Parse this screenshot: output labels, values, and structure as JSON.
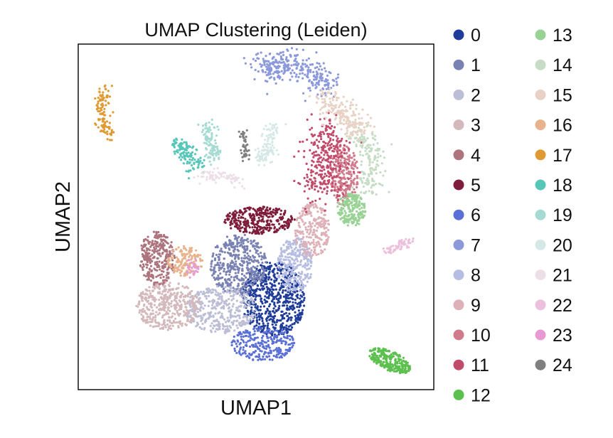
{
  "chart_data": {
    "type": "scatter",
    "title": "UMAP Clustering (Leiden)",
    "xlabel": "UMAP1",
    "ylabel": "UMAP2",
    "axis_ticks": "none",
    "grid": false,
    "legend_placement": "right, two columns",
    "series": [
      {
        "name": "0",
        "color": "#1f3c9a"
      },
      {
        "name": "1",
        "color": "#7a82b4"
      },
      {
        "name": "2",
        "color": "#bcbed6"
      },
      {
        "name": "3",
        "color": "#d4b9bc"
      },
      {
        "name": "4",
        "color": "#ad747e"
      },
      {
        "name": "5",
        "color": "#7e1c3b"
      },
      {
        "name": "6",
        "color": "#5b70d6"
      },
      {
        "name": "7",
        "color": "#8b99db"
      },
      {
        "name": "8",
        "color": "#b6bde2"
      },
      {
        "name": "9",
        "color": "#deb0b7"
      },
      {
        "name": "10",
        "color": "#d07a8c"
      },
      {
        "name": "11",
        "color": "#c24a6a"
      },
      {
        "name": "12",
        "color": "#5cc04f"
      },
      {
        "name": "13",
        "color": "#98d294"
      },
      {
        "name": "14",
        "color": "#c6dcc5"
      },
      {
        "name": "15",
        "color": "#e8d2c6"
      },
      {
        "name": "16",
        "color": "#e8b38c"
      },
      {
        "name": "17",
        "color": "#e09a34"
      },
      {
        "name": "18",
        "color": "#56c6b8"
      },
      {
        "name": "19",
        "color": "#a5dbd3"
      },
      {
        "name": "20",
        "color": "#d6e8e5"
      },
      {
        "name": "21",
        "color": "#eddfe6"
      },
      {
        "name": "22",
        "color": "#ecbfdc"
      },
      {
        "name": "23",
        "color": "#e79ad4"
      },
      {
        "name": "24",
        "color": "#808080"
      }
    ],
    "clusters": [
      {
        "label": "0",
        "shape": "ellipse",
        "cx": 0.55,
        "cy": 0.26,
        "rx": 0.09,
        "ry": 0.11,
        "n": 650
      },
      {
        "label": "1",
        "shape": "ellipse",
        "cx": 0.45,
        "cy": 0.36,
        "rx": 0.08,
        "ry": 0.09,
        "n": 450
      },
      {
        "label": "2",
        "shape": "ellipse",
        "cx": 0.4,
        "cy": 0.23,
        "rx": 0.1,
        "ry": 0.07,
        "n": 380
      },
      {
        "label": "3",
        "shape": "ellipse",
        "cx": 0.25,
        "cy": 0.24,
        "rx": 0.09,
        "ry": 0.07,
        "n": 420
      },
      {
        "label": "4",
        "shape": "ellipse",
        "cx": 0.22,
        "cy": 0.38,
        "rx": 0.05,
        "ry": 0.08,
        "n": 300
      },
      {
        "label": "5",
        "shape": "ellipse",
        "cx": 0.51,
        "cy": 0.49,
        "rx": 0.1,
        "ry": 0.04,
        "n": 320
      },
      {
        "label": "6",
        "shape": "ellipse",
        "cx": 0.52,
        "cy": 0.13,
        "rx": 0.09,
        "ry": 0.05,
        "n": 260
      },
      {
        "label": "7",
        "shape": "path",
        "pts": [
          [
            0.52,
            0.92
          ],
          [
            0.55,
            0.95
          ],
          [
            0.6,
            0.95
          ],
          [
            0.66,
            0.92
          ],
          [
            0.71,
            0.87
          ]
        ],
        "w": 0.022,
        "n": 320
      },
      {
        "label": "8",
        "shape": "ellipse",
        "cx": 0.61,
        "cy": 0.36,
        "rx": 0.05,
        "ry": 0.08,
        "n": 280
      },
      {
        "label": "9",
        "shape": "ellipse",
        "cx": 0.66,
        "cy": 0.46,
        "rx": 0.05,
        "ry": 0.08,
        "n": 240
      },
      {
        "label": "10",
        "shape": "ellipse",
        "cx": 0.75,
        "cy": 0.62,
        "rx": 0.04,
        "ry": 0.09,
        "n": 230
      },
      {
        "label": "11",
        "shape": "path",
        "pts": [
          [
            0.68,
            0.75
          ],
          [
            0.71,
            0.7
          ],
          [
            0.7,
            0.62
          ],
          [
            0.67,
            0.58
          ]
        ],
        "w": 0.03,
        "n": 320
      },
      {
        "label": "12",
        "shape": "ellipse",
        "cx": 0.88,
        "cy": 0.08,
        "rx": 0.065,
        "ry": 0.028,
        "rot": -25,
        "n": 260
      },
      {
        "label": "13",
        "shape": "ellipse",
        "cx": 0.77,
        "cy": 0.52,
        "rx": 0.04,
        "ry": 0.05,
        "n": 200
      },
      {
        "label": "14",
        "shape": "path",
        "pts": [
          [
            0.79,
            0.75
          ],
          [
            0.82,
            0.7
          ],
          [
            0.83,
            0.63
          ],
          [
            0.82,
            0.58
          ]
        ],
        "w": 0.018,
        "n": 160
      },
      {
        "label": "15",
        "shape": "path",
        "pts": [
          [
            0.7,
            0.85
          ],
          [
            0.73,
            0.81
          ],
          [
            0.77,
            0.78
          ],
          [
            0.8,
            0.75
          ]
        ],
        "w": 0.022,
        "n": 200
      },
      {
        "label": "16",
        "shape": "ellipse",
        "cx": 0.3,
        "cy": 0.37,
        "rx": 0.05,
        "ry": 0.045,
        "n": 140
      },
      {
        "label": "17",
        "shape": "path",
        "pts": [
          [
            0.07,
            0.87
          ],
          [
            0.06,
            0.82
          ],
          [
            0.07,
            0.77
          ],
          [
            0.09,
            0.73
          ]
        ],
        "w": 0.01,
        "n": 110
      },
      {
        "label": "18",
        "shape": "path",
        "pts": [
          [
            0.27,
            0.73
          ],
          [
            0.29,
            0.7
          ],
          [
            0.31,
            0.67
          ],
          [
            0.33,
            0.65
          ]
        ],
        "w": 0.015,
        "n": 120
      },
      {
        "label": "19",
        "shape": "path",
        "pts": [
          [
            0.36,
            0.77
          ],
          [
            0.37,
            0.73
          ],
          [
            0.38,
            0.69
          ],
          [
            0.38,
            0.67
          ]
        ],
        "w": 0.012,
        "n": 100
      },
      {
        "label": "20",
        "shape": "path",
        "pts": [
          [
            0.55,
            0.76
          ],
          [
            0.54,
            0.72
          ],
          [
            0.53,
            0.69
          ],
          [
            0.51,
            0.67
          ]
        ],
        "w": 0.012,
        "n": 110
      },
      {
        "label": "21",
        "shape": "path",
        "pts": [
          [
            0.34,
            0.62
          ],
          [
            0.38,
            0.62
          ],
          [
            0.42,
            0.62
          ],
          [
            0.46,
            0.59
          ]
        ],
        "w": 0.008,
        "n": 70
      },
      {
        "label": "22",
        "shape": "path",
        "pts": [
          [
            0.87,
            0.4
          ],
          [
            0.9,
            0.41
          ],
          [
            0.94,
            0.43
          ]
        ],
        "w": 0.007,
        "n": 55
      },
      {
        "label": "23",
        "shape": "ellipse",
        "cx": 0.32,
        "cy": 0.35,
        "rx": 0.02,
        "ry": 0.03,
        "n": 25
      },
      {
        "label": "24",
        "shape": "path",
        "pts": [
          [
            0.46,
            0.75
          ],
          [
            0.47,
            0.71
          ],
          [
            0.47,
            0.67
          ]
        ],
        "w": 0.005,
        "n": 45
      }
    ]
  }
}
